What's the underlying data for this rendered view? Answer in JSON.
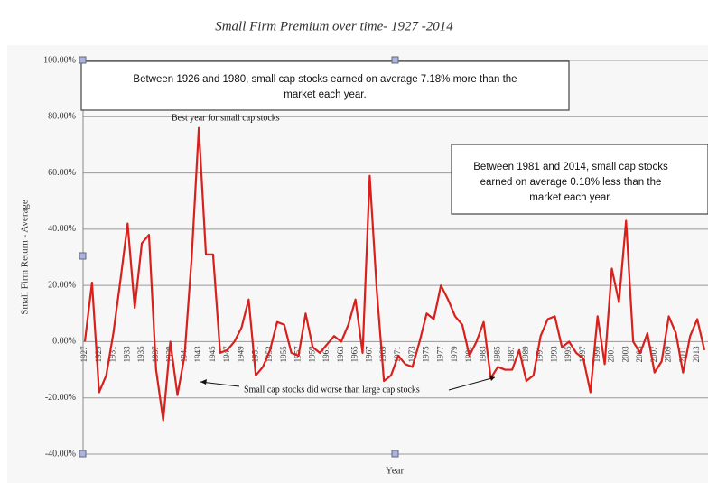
{
  "chart_data": {
    "type": "line",
    "title": "Small Firm Premium over time- 1927 -2014",
    "x_label": "Year",
    "y_label": "Small Firm Return - Average",
    "categories": [
      "1927",
      null,
      "1929",
      null,
      "1931",
      null,
      "1933",
      null,
      "1935",
      null,
      "1937",
      null,
      "1939",
      null,
      "1941",
      null,
      "1943",
      null,
      "1945",
      null,
      "1947",
      null,
      "1949",
      null,
      "1951",
      null,
      "1953",
      null,
      "1955",
      null,
      "1957",
      null,
      "1959",
      null,
      "1961",
      null,
      "1963",
      null,
      "1965",
      null,
      "1967",
      null,
      "1969",
      null,
      "1971",
      null,
      "1973",
      null,
      "1975",
      null,
      "1977",
      null,
      "1979",
      null,
      "1981",
      null,
      "1983",
      null,
      "1985",
      null,
      "1987",
      null,
      "1989",
      null,
      "1991",
      null,
      "1993",
      null,
      "1995",
      null,
      "1997",
      null,
      "1999",
      null,
      "2001",
      null,
      "2003",
      null,
      "2005",
      null,
      "2007",
      null,
      "2009",
      null,
      "2011",
      null,
      "2013",
      null
    ],
    "series": [
      {
        "name": "Small Firm Premium",
        "color": "#d8201c",
        "values": [
          0,
          21,
          -18,
          -12,
          3,
          22,
          42,
          12,
          35,
          38,
          -10,
          -28,
          0,
          -19,
          -5,
          30,
          76,
          31,
          31,
          -4,
          -3,
          0,
          5,
          15,
          -12,
          -9,
          -3,
          7,
          6,
          -4,
          -5,
          10,
          -2,
          -4,
          -1,
          2,
          0,
          6,
          15,
          -4,
          59,
          18,
          -14,
          -12,
          -5,
          -8,
          -9,
          0,
          10,
          8,
          20,
          15,
          9,
          6,
          -5,
          0,
          7,
          -13,
          -9,
          -10,
          -10,
          -3,
          -14,
          -12,
          2,
          8,
          9,
          -2,
          0,
          -4,
          -6,
          -18,
          9,
          -8,
          26,
          14,
          43,
          0,
          -4,
          3,
          -11,
          -7,
          9,
          3,
          -11,
          2,
          8,
          -3
        ]
      }
    ],
    "ylim": [
      -40,
      100
    ],
    "yticks": [
      {
        "value": -40,
        "label": "-40.00%"
      },
      {
        "value": -20,
        "label": "-20.00%"
      },
      {
        "value": 0,
        "label": "0.00%"
      },
      {
        "value": 20,
        "label": "20.00%"
      },
      {
        "value": 40,
        "label": "40.00%"
      },
      {
        "value": 60,
        "label": "60.00%"
      },
      {
        "value": 80,
        "label": "80.00%"
      },
      {
        "value": 100,
        "label": "100.00%"
      }
    ],
    "grid": true,
    "annotations": {
      "box1": [
        "Between 1926 and 1980, small cap stocks earned on average 7.18% more than the",
        "market each year."
      ],
      "box2": [
        "Between 1981 and 2014, small cap stocks",
        "earned on average 0.18% less than the",
        "market each year."
      ],
      "best_year": "Best year for small cap stocks",
      "worse": "Small cap stocks did worse than large cap stocks"
    }
  }
}
